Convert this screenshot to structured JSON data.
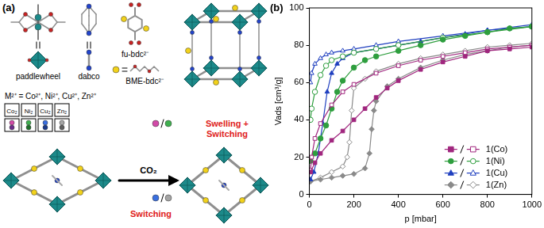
{
  "panel_a": {
    "label": "(a)",
    "components": [
      "paddlewheel",
      "dabco",
      "fu-bdc²⁻",
      "BME-bdc²⁻"
    ],
    "metals": "M²⁺ = Co²⁺, Ni²⁺, Cu²⁺, Zn²⁺",
    "metal_boxes": [
      "Co₂",
      "Ni₂",
      "Cu₂",
      "Zn₂"
    ],
    "stimulus": "CO₂",
    "response_top": [
      "Swelling +",
      "Switching"
    ],
    "response_bottom": "Switching"
  },
  "panel_b": {
    "label": "(b)"
  },
  "chart_data": {
    "type": "scatter",
    "x_label": "p [mbar]",
    "y_label": "Vads [cm³/g]",
    "xlim": [
      0,
      1000
    ],
    "xticks": [
      0,
      200,
      400,
      600,
      800,
      1000
    ],
    "ylim": [
      0,
      100
    ],
    "yticks": [
      0,
      20,
      40,
      60,
      80,
      100
    ],
    "grid": false,
    "legend": "bottom right",
    "series": [
      {
        "name": "1(Co)",
        "color": "#a0267e",
        "marker": "square",
        "x": [
          5,
          25,
          50,
          100,
          150,
          200,
          250,
          300,
          350,
          400,
          500,
          600,
          700,
          800,
          900,
          1000
        ],
        "values": [
          12,
          17,
          22,
          29,
          34,
          40,
          46,
          52,
          57,
          61,
          67,
          71,
          74,
          77,
          78,
          79
        ],
        "desorption_x": [
          1000,
          900,
          800,
          700,
          600,
          500,
          400,
          300,
          200,
          150,
          100,
          50,
          25,
          10,
          5
        ],
        "desorption_values": [
          80,
          79,
          78,
          76,
          74,
          72,
          69,
          65,
          59,
          55,
          48,
          38,
          30,
          20,
          13
        ]
      },
      {
        "name": "1(Ni)",
        "color": "#2e9e3e",
        "marker": "circle",
        "x": [
          5,
          25,
          50,
          75,
          100,
          125,
          150,
          200,
          250,
          300,
          400,
          500,
          600,
          700,
          800,
          900,
          1000
        ],
        "values": [
          18,
          22,
          30,
          37,
          46,
          55,
          61,
          68,
          72,
          74,
          77,
          80,
          83,
          85,
          87,
          89,
          90
        ],
        "desorption_x": [
          1000,
          800,
          600,
          400,
          300,
          200,
          150,
          100,
          75,
          50,
          25,
          10,
          5
        ],
        "desorption_values": [
          90,
          87,
          84,
          80,
          78,
          76,
          74,
          72,
          69,
          64,
          55,
          46,
          40
        ]
      },
      {
        "name": "1(Cu)",
        "color": "#1f3fbf",
        "marker": "triangle",
        "x": [
          5,
          20,
          40,
          60,
          80,
          100,
          125,
          150,
          200,
          300,
          400,
          500,
          600,
          700,
          800,
          900,
          1000
        ],
        "values": [
          8,
          12,
          22,
          38,
          55,
          65,
          70,
          73,
          76,
          78,
          80,
          82,
          84,
          86,
          88,
          89,
          90
        ],
        "desorption_x": [
          1000,
          800,
          600,
          400,
          300,
          200,
          150,
          100,
          75,
          50,
          25,
          10,
          5
        ],
        "desorption_values": [
          91,
          88,
          85,
          82,
          80,
          78,
          77,
          76,
          75,
          73,
          70,
          65,
          60
        ]
      },
      {
        "name": "1(Zn)",
        "color": "#8a8a8a",
        "marker": "diamond",
        "x": [
          5,
          50,
          100,
          150,
          200,
          250,
          270,
          280,
          290,
          300,
          350,
          400,
          500,
          600,
          700,
          800,
          900,
          1000
        ],
        "values": [
          7,
          8,
          9,
          10,
          11,
          14,
          22,
          35,
          45,
          50,
          58,
          62,
          68,
          72,
          75,
          77,
          79,
          80
        ],
        "desorption_x": [
          1000,
          900,
          800,
          700,
          600,
          500,
          400,
          300,
          250,
          200,
          190,
          180,
          170,
          150,
          100,
          50,
          5
        ],
        "desorption_values": [
          81,
          80,
          79,
          77,
          75,
          73,
          70,
          66,
          62,
          57,
          45,
          28,
          20,
          15,
          12,
          9,
          7
        ]
      }
    ]
  }
}
